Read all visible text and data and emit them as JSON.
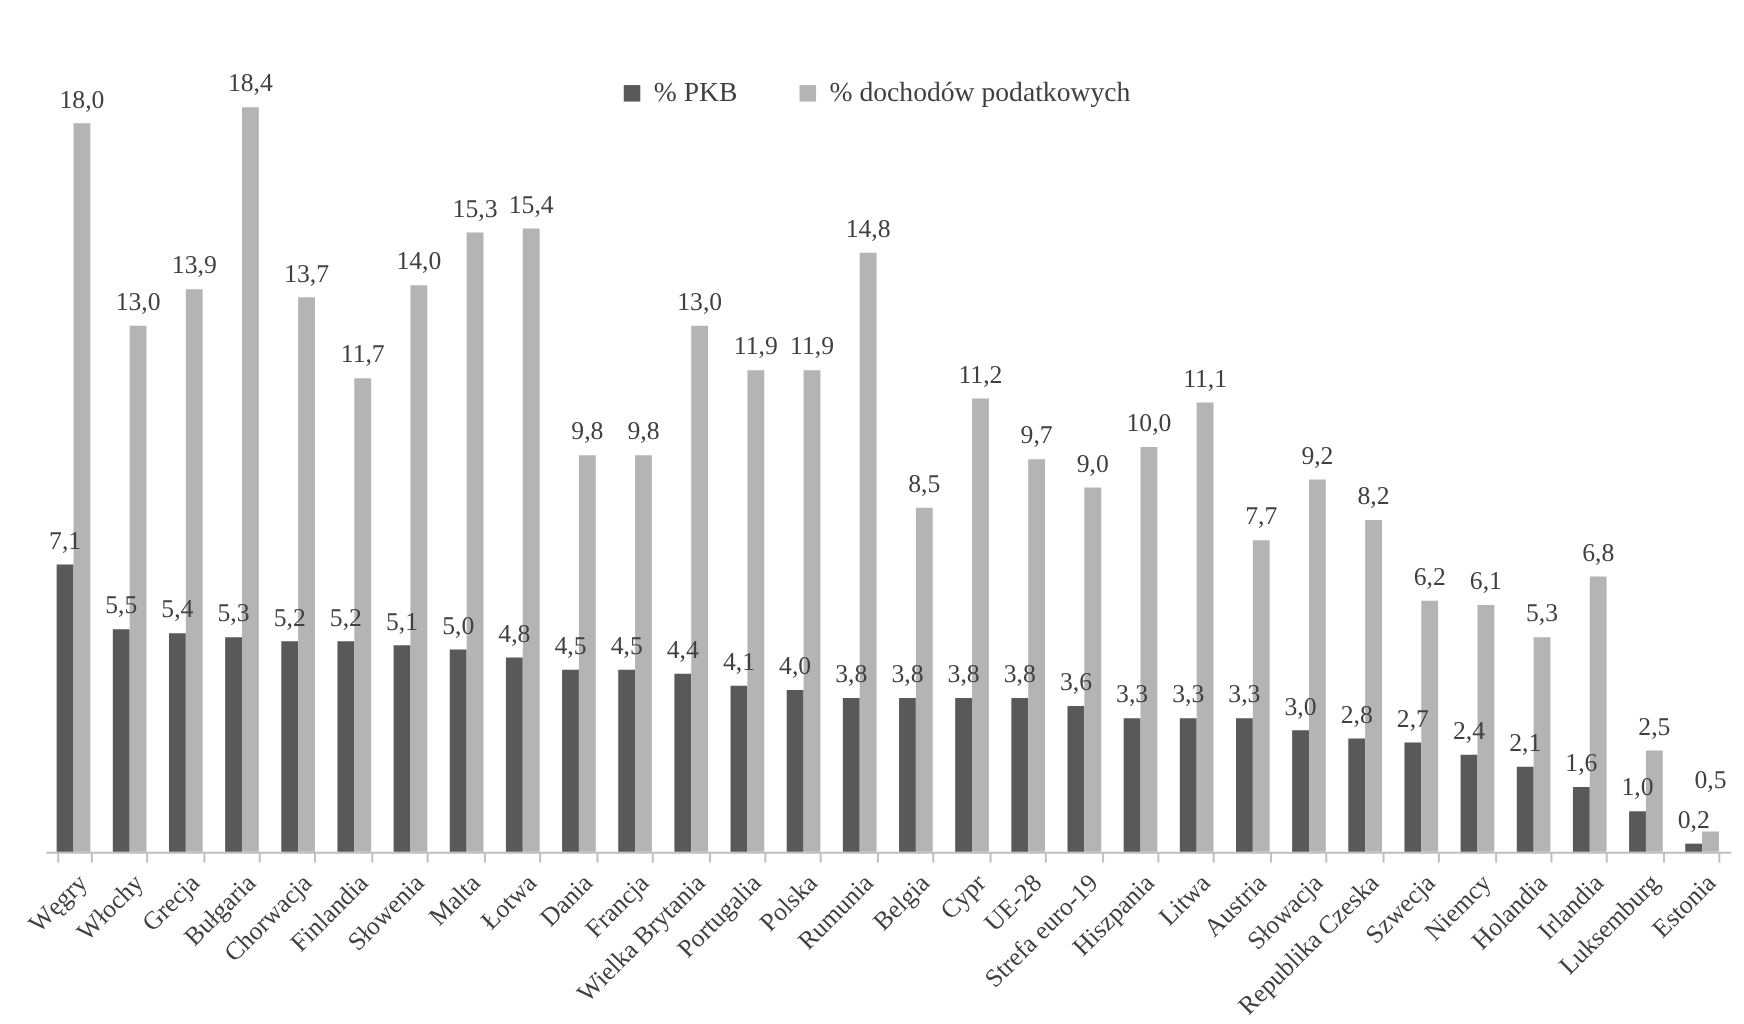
{
  "chart_data": {
    "type": "bar",
    "categories": [
      "Węgry",
      "Włochy",
      "Grecja",
      "Bułgaria",
      "Chorwacja",
      "Finlandia",
      "Słowenia",
      "Malta",
      "Łotwa",
      "Dania",
      "Francja",
      "Wielka Brytania",
      "Portugalia",
      "Polska",
      "Rumunia",
      "Belgia",
      "Cypr",
      "UE-28",
      "Strefa euro-19",
      "Hiszpania",
      "Litwa",
      "Austria",
      "Słowacja",
      "Republika Czeska",
      "Szwecja",
      "Niemcy",
      "Holandia",
      "Irlandia",
      "Luksemburg",
      "Estonia"
    ],
    "series": [
      {
        "name": "% PKB",
        "color": "#595959",
        "values": [
          7.1,
          5.5,
          5.4,
          5.3,
          5.2,
          5.2,
          5.1,
          5.0,
          4.8,
          4.5,
          4.5,
          4.4,
          4.1,
          4.0,
          3.8,
          3.8,
          3.8,
          3.8,
          3.6,
          3.3,
          3.3,
          3.3,
          3.0,
          2.8,
          2.7,
          2.4,
          2.1,
          1.6,
          1.0,
          0.2
        ],
        "value_labels": [
          "7,1",
          "5,5",
          "5,4",
          "5,3",
          "5,2",
          "5,2",
          "5,1",
          "5,0",
          "4,8",
          "4,5",
          "4,5",
          "4,4",
          "4,1",
          "4,0",
          "3,8",
          "3,8",
          "3,8",
          "3,8",
          "3,6",
          "3,3",
          "3,3",
          "3,3",
          "3,0",
          "2,8",
          "2,7",
          "2,4",
          "2,1",
          "1,6",
          "1,0",
          "0,2"
        ]
      },
      {
        "name": "% dochodów podatkowych",
        "color": "#b4b4b4",
        "values": [
          18.0,
          13.0,
          13.9,
          18.4,
          13.7,
          11.7,
          14.0,
          15.3,
          15.4,
          9.8,
          9.8,
          13.0,
          11.9,
          11.9,
          14.8,
          8.5,
          11.2,
          9.7,
          9.0,
          10.0,
          11.1,
          7.7,
          9.2,
          8.2,
          6.2,
          6.1,
          5.3,
          6.8,
          2.5,
          0.5
        ],
        "value_labels": [
          "18,0",
          "13,0",
          "13,9",
          "18,4",
          "13,7",
          "11,7",
          "14,0",
          "15,3",
          "15,4",
          "9,8",
          "9,8",
          "13,0",
          "11,9",
          "11,9",
          "14,8",
          "8,5",
          "11,2",
          "9,7",
          "9,0",
          "10,0",
          "11,1",
          "7,7",
          "9,2",
          "8,2",
          "6,2",
          "6,1",
          "5,3",
          "6,8",
          "2,5",
          "0,5"
        ]
      }
    ],
    "legend": "top"
  }
}
